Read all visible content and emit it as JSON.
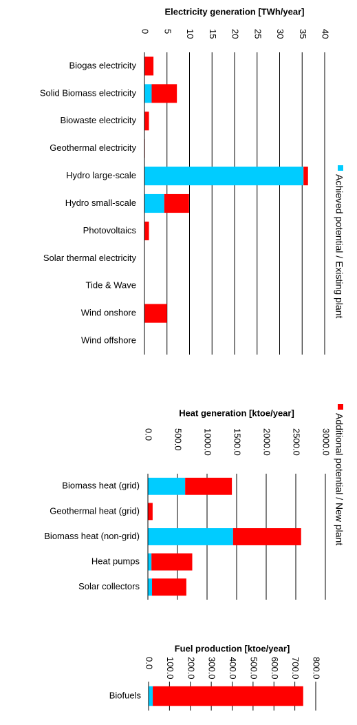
{
  "chart_data": [
    {
      "type": "bar",
      "orientation": "horizontal",
      "stacked": true,
      "grid": true,
      "title": "Electricity generation [TWh/year]",
      "categories": [
        "Biogas electricity",
        "Solid Biomass electricity",
        "Biowaste electricity",
        "Geothermal electricity",
        "Hydro large-scale",
        "Hydro small-scale",
        "Photovoltaics",
        "Solar thermal electricity",
        "Tide & Wave",
        "Wind onshore",
        "Wind offshore"
      ],
      "series": [
        {
          "name": "Achieved potential / Existing plant",
          "color": "#00ccff",
          "values": [
            0,
            1.6,
            0,
            0,
            35.3,
            4.4,
            0,
            0,
            0,
            0,
            0
          ]
        },
        {
          "name": "Additional potential / New plant",
          "color": "#ff0000",
          "values": [
            2.0,
            5.6,
            1.0,
            0.1,
            1.0,
            5.5,
            1.0,
            0,
            0,
            5.0,
            0
          ]
        }
      ],
      "xlim": [
        0,
        40
      ],
      "xticks": [
        0,
        5,
        10,
        15,
        20,
        25,
        30,
        35,
        40
      ]
    },
    {
      "type": "bar",
      "orientation": "horizontal",
      "stacked": true,
      "grid": true,
      "title": "Heat generation [ktoe/year]",
      "categories": [
        "Biomass heat (grid)",
        "Geothermal heat (grid)",
        "Biomass heat (non-grid)",
        "Heat pumps",
        "Solar collectors"
      ],
      "series": [
        {
          "color": "#00ccff",
          "values": [
            630,
            0,
            1440,
            60,
            70
          ]
        },
        {
          "color": "#ff0000",
          "values": [
            790,
            80,
            1150,
            690,
            580
          ]
        }
      ],
      "xlim": [
        0,
        3000
      ],
      "xticks": [
        {
          "value": 0,
          "label": "0.0"
        },
        {
          "value": 500,
          "label": "500.0"
        },
        {
          "value": 1000,
          "label": "1000.0"
        },
        {
          "value": 1500,
          "label": "1500.0"
        },
        {
          "value": 2000,
          "label": "2000.0"
        },
        {
          "value": 2500,
          "label": "2500.0"
        },
        {
          "value": 3000,
          "label": "3000.0"
        }
      ]
    },
    {
      "type": "bar",
      "orientation": "horizontal",
      "stacked": true,
      "grid": true,
      "title": "Fuel production [ktoe/year]",
      "categories": [
        "Biofuels"
      ],
      "series": [
        {
          "color": "#00ccff",
          "values": [
            20
          ]
        },
        {
          "color": "#ff0000",
          "values": [
            720
          ]
        }
      ],
      "xlim": [
        0,
        800
      ],
      "xticks": [
        {
          "value": 0,
          "label": "0.0"
        },
        {
          "value": 100,
          "label": "100.0"
        },
        {
          "value": 200,
          "label": "200.0"
        },
        {
          "value": 300,
          "label": "300.0"
        },
        {
          "value": 400,
          "label": "400.0"
        },
        {
          "value": 500,
          "label": "500.0"
        },
        {
          "value": 600,
          "label": "600.0"
        },
        {
          "value": 700,
          "label": "700.0"
        },
        {
          "value": 800,
          "label": "800.0"
        }
      ]
    }
  ]
}
